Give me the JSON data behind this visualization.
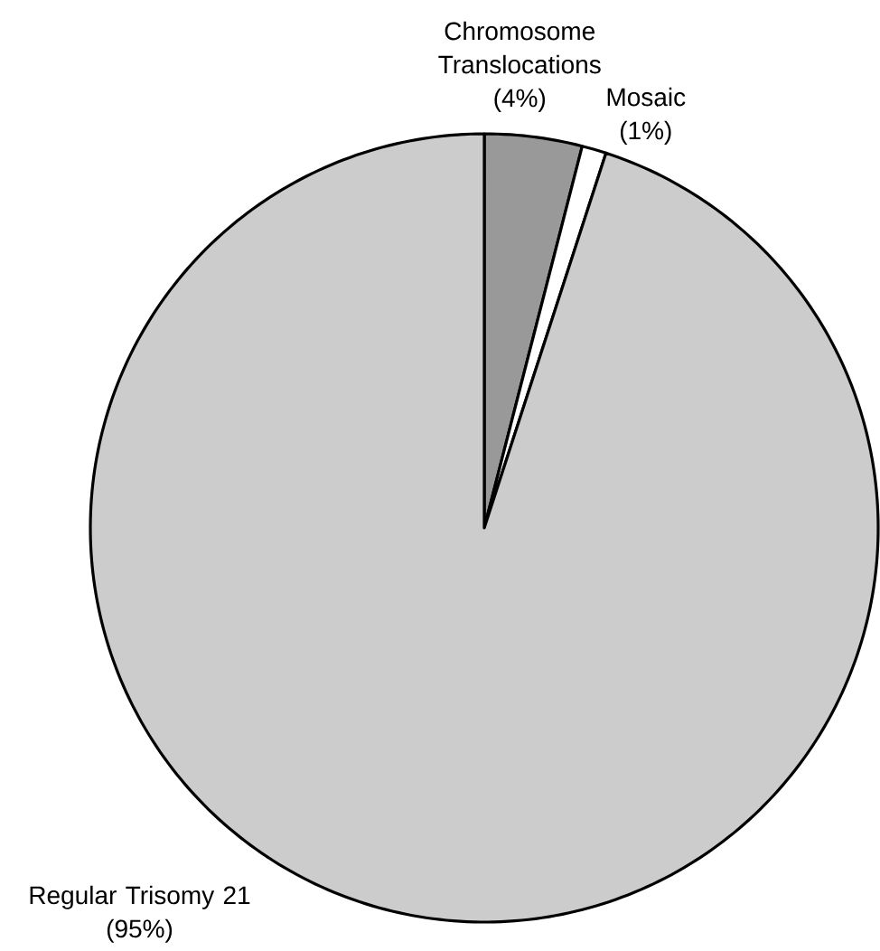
{
  "chart_data": {
    "type": "pie",
    "categories": [
      "Chromosome Translocations",
      "Mosaic",
      "Regular Trisomy 21"
    ],
    "values": [
      4,
      1,
      95
    ],
    "colors": [
      "#999999",
      "#ffffff",
      "#cccccc"
    ],
    "value_labels": [
      "(4%)",
      "(1%)",
      "(95%)"
    ]
  }
}
